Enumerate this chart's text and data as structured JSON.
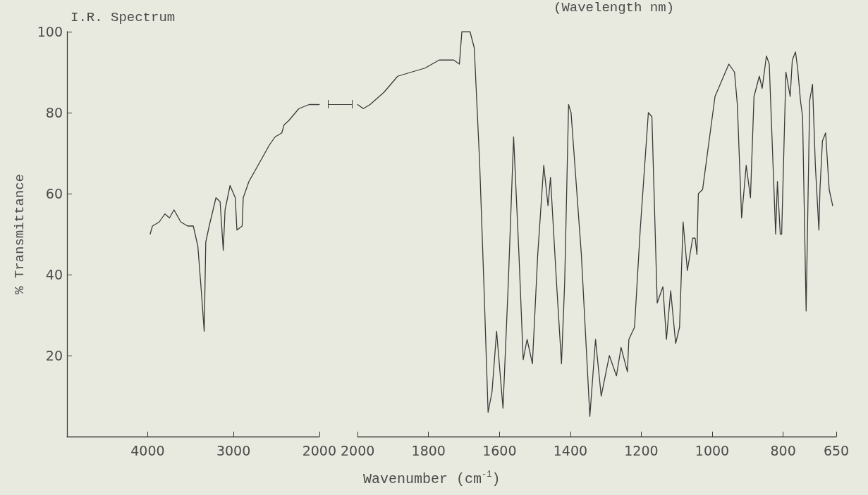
{
  "chart_data": [
    {
      "type": "line",
      "title": "I.R. Spectrum",
      "ylabel": "% Transmittance",
      "color": "#3a3a3a",
      "x": [
        3971,
        3944,
        3865,
        3799,
        3746,
        3693,
        3614,
        3534,
        3468,
        3415,
        3375,
        3341,
        3323,
        3283,
        3204,
        3156,
        3119,
        3098,
        3040,
        2979,
        2960,
        2899,
        2886,
        2820,
        2740,
        2661,
        2582,
        2516,
        2437,
        2410,
        2357,
        2238,
        2119,
        2040,
        2000
      ],
      "values": [
        50,
        52,
        53,
        55,
        54,
        56,
        53,
        52,
        52,
        47,
        36,
        26,
        48,
        52,
        59,
        58,
        46,
        56,
        62,
        59,
        51,
        52,
        59,
        63,
        66,
        69,
        72,
        74,
        75,
        77,
        78,
        81,
        82,
        82,
        82
      ],
      "xlim": [
        4940,
        2000
      ],
      "xticks": [
        4000,
        3000,
        2000
      ],
      "ylim": [
        0,
        100
      ],
      "yticks": [
        20,
        40,
        60,
        80,
        100
      ]
    },
    {
      "type": "line",
      "xlabel": "Wavenumber (cm$^{-1}$)",
      "annotations": [
        "(Wavelength nm)"
      ],
      "color": "#3a3a3a",
      "x": [
        2000,
        1984,
        1965,
        1926,
        1887,
        1849,
        1810,
        1770,
        1729,
        1713,
        1706,
        1703,
        1683,
        1671,
        1656,
        1644,
        1632,
        1621,
        1608,
        1590,
        1575,
        1560,
        1545,
        1533,
        1522,
        1507,
        1492,
        1475,
        1463,
        1456,
        1439,
        1425,
        1416,
        1405,
        1398,
        1369,
        1345,
        1329,
        1313,
        1290,
        1270,
        1257,
        1239,
        1235,
        1219,
        1203,
        1180,
        1170,
        1155,
        1139,
        1129,
        1117,
        1103,
        1092,
        1082,
        1070,
        1055,
        1048,
        1043,
        1039,
        1027,
        992,
        953,
        937,
        929,
        917,
        904,
        892,
        882,
        867,
        859,
        847,
        839,
        821,
        816,
        808,
        804,
        792,
        780,
        774,
        765,
        759,
        751,
        745,
        735,
        725,
        717,
        709,
        699,
        696,
        689,
        680,
        670,
        660
      ],
      "values": [
        82,
        81,
        82,
        85,
        89,
        90,
        91,
        93,
        93,
        92,
        100,
        100,
        100,
        96,
        68,
        38,
        6,
        11,
        26,
        7,
        38,
        74,
        45,
        19,
        24,
        18,
        45,
        67,
        57,
        64,
        38,
        18,
        38,
        82,
        80,
        45,
        5,
        24,
        10,
        20,
        15,
        22,
        16,
        24,
        27,
        51,
        80,
        79,
        33,
        37,
        24,
        36,
        23,
        27,
        53,
        41,
        49,
        49,
        45,
        60,
        61,
        84,
        92,
        90,
        82,
        54,
        67,
        59,
        84,
        89,
        86,
        94,
        92,
        50,
        63,
        50,
        50,
        90,
        84,
        93,
        95,
        91,
        83,
        79,
        31,
        83,
        87,
        67,
        51,
        61,
        73,
        75,
        61,
        57
      ],
      "xlim": [
        2000,
        650
      ],
      "xticks": [
        2000,
        1800,
        1600,
        1400,
        1200,
        1000,
        800,
        650
      ],
      "ylim": [
        0,
        100
      ],
      "yticks": [
        20,
        40,
        60,
        80,
        100
      ],
      "tick_labels": "x"
    }
  ]
}
